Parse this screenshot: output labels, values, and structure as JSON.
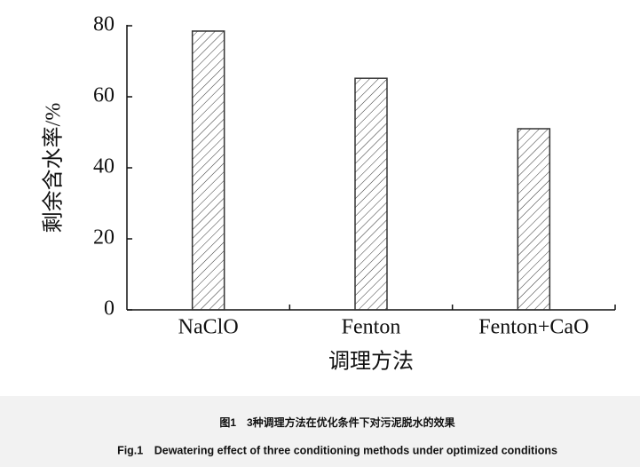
{
  "chart_data": {
    "type": "bar",
    "categories": [
      "NaClO",
      "Fenton",
      "Fenton+CaO"
    ],
    "values": [
      78.5,
      65.2,
      51
    ],
    "color": "#333333",
    "hatch": true,
    "xlabel": "调理方法",
    "ylabel": "剩余含水率/%",
    "ylim": [
      0,
      80
    ],
    "yticks": [
      0,
      20,
      40,
      60,
      80
    ],
    "grid": false
  },
  "caption": {
    "zh": "图1　3种调理方法在优化条件下对污泥脱水的效果",
    "en": "Fig.1　Dewatering effect of three conditioning methods under optimized conditions"
  }
}
